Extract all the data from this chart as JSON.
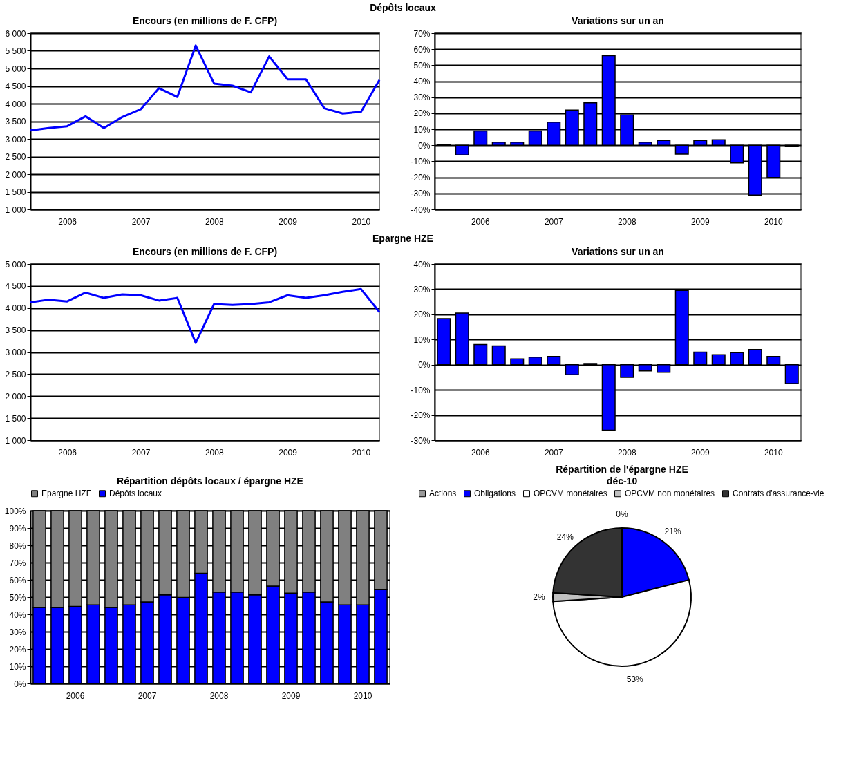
{
  "chart_data": [
    {
      "type": "line",
      "annotations": [
        "Dépôts locaux"
      ],
      "title": "Encours (en millions de F. CFP)",
      "categories": [
        null,
        null,
        "2006",
        null,
        null,
        null,
        "2007",
        null,
        null,
        null,
        "2008",
        null,
        null,
        null,
        "2009",
        null,
        null,
        null,
        "2010",
        null
      ],
      "series": [
        {
          "color": "#0000ff",
          "values": [
            3240,
            3310,
            3360,
            3640,
            3310,
            3620,
            3840,
            4440,
            4190,
            5650,
            4570,
            4510,
            4320,
            5340,
            4690,
            4690,
            3870,
            3720,
            3770,
            4670
          ]
        }
      ],
      "ylim": [
        1000,
        6000
      ],
      "yticks": [
        {
          "value": 1000,
          "label": "1 000"
        },
        {
          "value": 1500,
          "label": "1 500"
        },
        {
          "value": 2000,
          "label": "2 000"
        },
        {
          "value": 2500,
          "label": "2 500"
        },
        {
          "value": 3000,
          "label": "3 000"
        },
        {
          "value": 3500,
          "label": "3 500"
        },
        {
          "value": 4000,
          "label": "4 000"
        },
        {
          "value": 4500,
          "label": "4 500"
        },
        {
          "value": 5000,
          "label": "5 000"
        },
        {
          "value": 5500,
          "label": "5 500"
        },
        {
          "value": 6000,
          "label": "6 000"
        }
      ],
      "grid": "y"
    },
    {
      "type": "bar",
      "title": "Variations sur un an",
      "categories": [
        null,
        null,
        "2006",
        null,
        null,
        null,
        "2007",
        null,
        null,
        null,
        "2008",
        null,
        null,
        null,
        "2009",
        null,
        null,
        null,
        "2010",
        null
      ],
      "series": [
        {
          "color": "#0000ff",
          "values": [
            0.5,
            -6,
            9,
            2,
            2,
            9,
            14.5,
            22,
            26.5,
            56,
            19,
            2,
            3,
            -5.5,
            3,
            3.5,
            -11,
            -31,
            -20,
            -0.5
          ]
        }
      ],
      "ylim": [
        -40,
        70
      ],
      "yticks": [
        {
          "value": -40,
          "label": "-40%"
        },
        {
          "value": -30,
          "label": "-30%"
        },
        {
          "value": -20,
          "label": "-20%"
        },
        {
          "value": -10,
          "label": "-10%"
        },
        {
          "value": 0,
          "label": "0%"
        },
        {
          "value": 10,
          "label": "10%"
        },
        {
          "value": 20,
          "label": "20%"
        },
        {
          "value": 30,
          "label": "30%"
        },
        {
          "value": 40,
          "label": "40%"
        },
        {
          "value": 50,
          "label": "50%"
        },
        {
          "value": 60,
          "label": "60%"
        },
        {
          "value": 70,
          "label": "70%"
        }
      ],
      "grid": "y"
    },
    {
      "type": "line",
      "annotations": [
        "Epargne HZE"
      ],
      "title": "Encours (en millions de F. CFP)",
      "categories": [
        null,
        null,
        "2006",
        null,
        null,
        null,
        "2007",
        null,
        null,
        null,
        "2008",
        null,
        null,
        null,
        "2009",
        null,
        null,
        null,
        "2010",
        null
      ],
      "series": [
        {
          "color": "#0000ff",
          "values": [
            4130,
            4190,
            4150,
            4350,
            4230,
            4310,
            4290,
            4170,
            4230,
            3210,
            4090,
            4070,
            4090,
            4130,
            4290,
            4230,
            4290,
            4370,
            4430,
            3910
          ]
        }
      ],
      "ylim": [
        1000,
        5000
      ],
      "yticks": [
        {
          "value": 1000,
          "label": "1 000"
        },
        {
          "value": 1500,
          "label": "1 500"
        },
        {
          "value": 2000,
          "label": "2 000"
        },
        {
          "value": 2500,
          "label": "2 500"
        },
        {
          "value": 3000,
          "label": "3 000"
        },
        {
          "value": 3500,
          "label": "3 500"
        },
        {
          "value": 4000,
          "label": "4 000"
        },
        {
          "value": 4500,
          "label": "4 500"
        },
        {
          "value": 5000,
          "label": "5 000"
        }
      ],
      "grid": "y"
    },
    {
      "type": "bar",
      "title": "Variations sur un an",
      "categories": [
        null,
        null,
        "2006",
        null,
        null,
        null,
        "2007",
        null,
        null,
        null,
        "2008",
        null,
        null,
        null,
        "2009",
        null,
        null,
        null,
        "2010",
        null
      ],
      "series": [
        {
          "color": "#0000ff",
          "values": [
            18.3,
            20.5,
            8,
            7.5,
            2.3,
            3,
            3.3,
            -4,
            0.5,
            -26,
            -5,
            -2.5,
            -3,
            29.5,
            5,
            4,
            4.8,
            6,
            3.3,
            -7.5
          ]
        }
      ],
      "ylim": [
        -30,
        40
      ],
      "yticks": [
        {
          "value": -30,
          "label": "-30%"
        },
        {
          "value": -20,
          "label": "-20%"
        },
        {
          "value": -10,
          "label": "-10%"
        },
        {
          "value": 0,
          "label": "0%"
        },
        {
          "value": 10,
          "label": "10%"
        },
        {
          "value": 20,
          "label": "20%"
        },
        {
          "value": 30,
          "label": "30%"
        },
        {
          "value": 40,
          "label": "40%"
        }
      ],
      "grid": "y"
    },
    {
      "type": "bar",
      "title": "Répartition dépôts locaux / épargne HZE",
      "stacked": true,
      "legend": "top",
      "categories": [
        null,
        null,
        "2006",
        null,
        null,
        null,
        "2007",
        null,
        null,
        null,
        "2008",
        null,
        null,
        null,
        "2009",
        null,
        null,
        null,
        "2010",
        null
      ],
      "series": [
        {
          "name": "Dépôts locaux",
          "color": "#0000ff",
          "values": [
            44,
            44,
            44.6,
            45.5,
            44,
            45.5,
            47.2,
            51.3,
            49.8,
            63.8,
            52.9,
            52.9,
            51.3,
            56.4,
            52.3,
            52.9,
            47.2,
            45.5,
            45.5,
            54.3
          ]
        },
        {
          "name": "Epargne HZE",
          "color": "#808080",
          "values": [
            56,
            56,
            55.4,
            54.5,
            56,
            54.5,
            52.8,
            48.7,
            50.2,
            36.2,
            47.1,
            47.1,
            48.7,
            43.6,
            47.7,
            47.1,
            52.8,
            54.5,
            54.5,
            45.7
          ]
        }
      ],
      "ylim": [
        0,
        100
      ],
      "yticks": [
        {
          "value": 0,
          "label": "0%"
        },
        {
          "value": 10,
          "label": "10%"
        },
        {
          "value": 20,
          "label": "20%"
        },
        {
          "value": 30,
          "label": "30%"
        },
        {
          "value": 40,
          "label": "40%"
        },
        {
          "value": 50,
          "label": "50%"
        },
        {
          "value": 60,
          "label": "60%"
        },
        {
          "value": 70,
          "label": "70%"
        },
        {
          "value": 80,
          "label": "80%"
        },
        {
          "value": 90,
          "label": "90%"
        },
        {
          "value": 100,
          "label": "100%"
        }
      ],
      "grid": "y"
    },
    {
      "type": "pie",
      "title": "Répartition de l'épargne HZE",
      "subtitle": "déc-10",
      "legend": "top",
      "categories": [
        "Actions",
        "Obligations",
        "OPCVM monétaires",
        "OPCVM non monétaires",
        "Contrats d'assurance-vie"
      ],
      "values": [
        0,
        21,
        53,
        2,
        24
      ],
      "colors": [
        "#999999",
        "#0000ff",
        "#ffffff",
        "#c0c0c0",
        "#333333"
      ],
      "value_labels": [
        "0%",
        "21%",
        "53%",
        "2%",
        "24%"
      ]
    }
  ]
}
